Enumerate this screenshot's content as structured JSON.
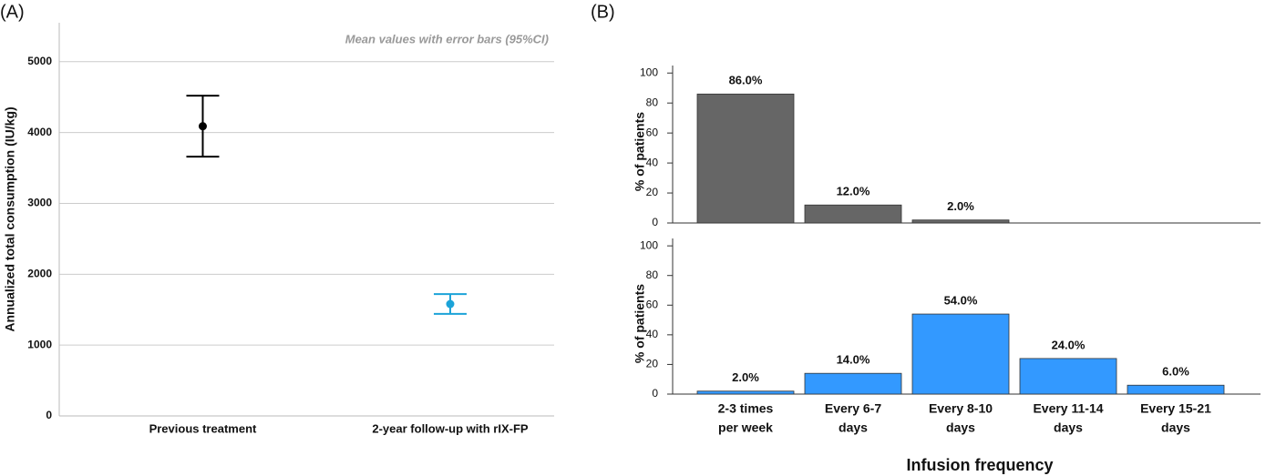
{
  "chart_data": [
    {
      "type": "errorbar",
      "panel_label": "(A)",
      "annotation": "Mean values with error bars (95%CI)",
      "ylabel": "Annualized total consumption (IU/kg)",
      "categories": [
        "Previous treatment",
        "2-year follow-up with rIX-FP"
      ],
      "values": [
        4090,
        1580
      ],
      "errors": [
        430,
        140
      ],
      "colors": [
        "#000000",
        "#1ba3d8"
      ],
      "ylim": [
        0,
        5550
      ],
      "yticks": [
        0,
        1000,
        2000,
        3000,
        4000,
        5000
      ],
      "grid": true
    },
    {
      "type": "bar",
      "panel_label": "(B)",
      "side_label": "Previous treatment",
      "ylabel": "% of patients",
      "values": [
        86,
        12,
        2,
        null,
        null
      ],
      "value_labels": [
        "86.0%",
        "12.0%",
        "2.0%",
        null,
        null
      ],
      "color": "#666666",
      "ylim": [
        0,
        105
      ],
      "yticks": [
        0,
        20,
        40,
        60,
        80,
        100
      ]
    },
    {
      "type": "bar",
      "side_label": "2-year follow-up with rIX-FP",
      "ylabel": "% of patients",
      "xlabel": "Infusion frequency",
      "categories": [
        [
          "2-3 times",
          "per week"
        ],
        [
          "Every 6-7",
          "days"
        ],
        [
          "Every 8-10",
          "days"
        ],
        [
          "Every 11-14",
          "days"
        ],
        [
          "Every 15-21",
          "days"
        ]
      ],
      "values": [
        2,
        14,
        54,
        24,
        6
      ],
      "value_labels": [
        "2.0%",
        "14.0%",
        "54.0%",
        "24.0%",
        "6.0%"
      ],
      "color": "#3399ff",
      "ylim": [
        0,
        105
      ],
      "yticks": [
        0,
        20,
        40,
        60,
        80,
        100
      ]
    }
  ]
}
